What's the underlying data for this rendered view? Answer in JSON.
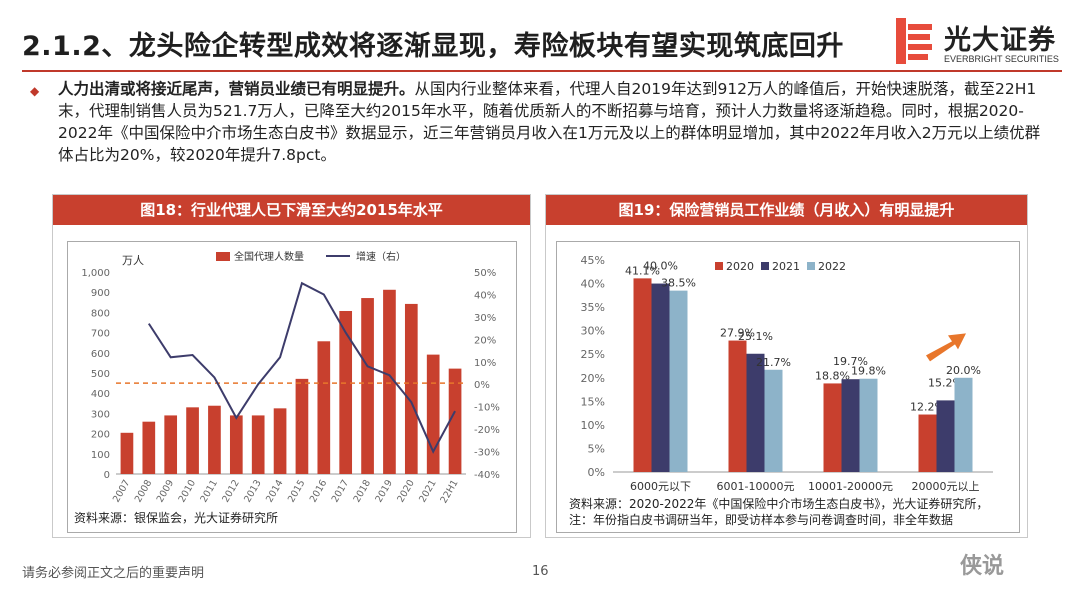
{
  "header": {
    "title": "2.1.2、龙头险企转型成效将逐渐显现，寿险板块有望实现筑底回升",
    "logo_cn": "光大证券",
    "logo_en": "EVERBRIGHT SECURITIES"
  },
  "body": {
    "lead_bold": "人力出清或将接近尾声，营销员业绩已有明显提升。",
    "text": "从国内行业整体来看，代理人自2019年达到912万人的峰值后，开始快速脱落，截至22H1末，代理制销售人员为521.7万人，已降至大约2015年水平，随着优质新人的不断招募与培育，预计人力数量将逐渐趋稳。同时，根据2020-2022年《中国保险中介市场生态白皮书》数据显示，近三年营销员月收入在1万元及以上的群体明显增加，其中2022年月收入2万元以上绩优群体占比为20%，较2020年提升7.8pct。"
  },
  "fig18": {
    "heading": "图18：行业代理人已下滑至大约2015年水平",
    "source": "资料来源：银保监会，光大证券研究所"
  },
  "fig19": {
    "heading": "图19：保险营销员工作业绩（月收入）有明显提升",
    "source_line1": "资料来源：2020-2022年《中国保险中介市场生态白皮书》，光大证券研究所，",
    "source_line2": "注：年份指白皮书调研当年，即受访样本参与问卷调查时间，非全年数据"
  },
  "footer": {
    "disclaimer": "请务必参阅正文之后的重要声明",
    "page": "16",
    "watermark": "侠说"
  },
  "colors": {
    "accent": "#c8402e",
    "bar_red": "#c8402e",
    "line_navy": "#3d3c6b",
    "bar_navy": "#3d3c6b",
    "bar_light": "#8db3c9",
    "ref_orange": "#e8762b"
  },
  "chart_data": [
    {
      "type": "bar",
      "title": "图18：行业代理人已下滑至大约2015年水平",
      "categories": [
        "2007",
        "2008",
        "2009",
        "2010",
        "2011",
        "2012",
        "2013",
        "2014",
        "2015",
        "2016",
        "2017",
        "2018",
        "2019",
        "2020",
        "2021",
        "22H1"
      ],
      "series": [
        {
          "name": "全国代理人数量",
          "axis": "left",
          "kind": "bar",
          "values": [
            204,
            259,
            290,
            330,
            338,
            290,
            290,
            325,
            471,
            657,
            807,
            871,
            912,
            842,
            591,
            521.7
          ]
        },
        {
          "name": "增速（右）",
          "axis": "right",
          "kind": "line",
          "values": [
            null,
            27,
            12,
            13,
            3,
            -15,
            0,
            12,
            45,
            40,
            23,
            8,
            4,
            -8,
            -30,
            -12
          ]
        }
      ],
      "ylabel_left": "万人",
      "ylim_left": [
        0,
        1000
      ],
      "yticks_left": [
        "0",
        "100",
        "200",
        "300",
        "400",
        "500",
        "600",
        "700",
        "800",
        "900",
        "1,000"
      ],
      "ylim_right": [
        -40,
        50
      ],
      "yticks_right": [
        "-40%",
        "-30%",
        "-20%",
        "-10%",
        "0%",
        "10%",
        "20%",
        "30%",
        "40%",
        "50%"
      ],
      "reference_line": {
        "axis": "left",
        "value": 450,
        "style": "dashed"
      },
      "legend": "top-center"
    },
    {
      "type": "bar",
      "title": "图19：保险营销员工作业绩（月收入）有明显提升",
      "categories": [
        "6000元以下",
        "6001-10000元",
        "10001-20000元",
        "20000元以上"
      ],
      "series": [
        {
          "name": "2020",
          "values": [
            41.1,
            27.9,
            18.8,
            12.2
          ]
        },
        {
          "name": "2021",
          "values": [
            40.0,
            25.1,
            19.7,
            15.2
          ]
        },
        {
          "name": "2022",
          "values": [
            38.5,
            21.7,
            19.8,
            20.0
          ]
        }
      ],
      "data_labels": [
        [
          "41.1%",
          "40.0%",
          "38.5%"
        ],
        [
          "27.9%",
          "25.1%",
          "21.7%"
        ],
        [
          "18.8%",
          "19.7%",
          "19.8%"
        ],
        [
          "12.2%",
          "15.2%",
          "20.0%"
        ]
      ],
      "ylim": [
        0,
        45
      ],
      "yticks": [
        "0%",
        "5%",
        "10%",
        "15%",
        "20%",
        "25%",
        "30%",
        "35%",
        "40%",
        "45%"
      ],
      "legend": "top-right"
    }
  ]
}
